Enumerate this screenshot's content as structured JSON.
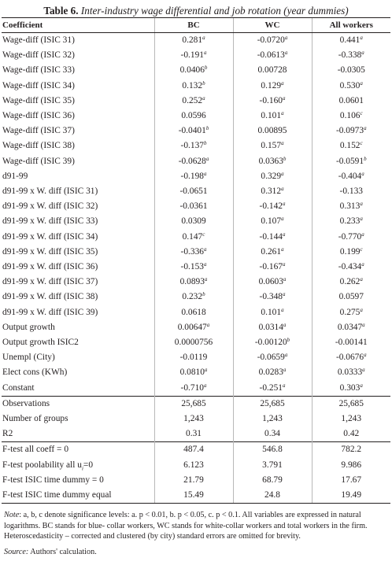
{
  "table": {
    "number_label": "Table 6.",
    "title": "Inter-industry wage differential and job rotation (year dummies)",
    "columns": [
      "Coefficient",
      "BC",
      "WC",
      "All workers"
    ],
    "coefficient_rows": [
      {
        "label": "Wage-diff (ISIC 31)",
        "bc": "0.281",
        "bc_sig": "a",
        "wc": "-0.0720",
        "wc_sig": "a",
        "all": "0.441",
        "all_sig": "a"
      },
      {
        "label": "Wage-diff (ISIC 32)",
        "bc": "-0.191",
        "bc_sig": "a",
        "wc": "-0.0613",
        "wc_sig": "a",
        "all": "-0.338",
        "all_sig": "a"
      },
      {
        "label": "Wage-diff (ISIC 33)",
        "bc": "0.0406",
        "bc_sig": "b",
        "wc": "0.00728",
        "wc_sig": "",
        "all": "-0.0305",
        "all_sig": ""
      },
      {
        "label": "Wage-diff (ISIC 34)",
        "bc": "0.132",
        "bc_sig": "b",
        "wc": "0.129",
        "wc_sig": "a",
        "all": "0.530",
        "all_sig": "a"
      },
      {
        "label": "Wage-diff (ISIC 35)",
        "bc": "0.252",
        "bc_sig": "a",
        "wc": "-0.160",
        "wc_sig": "a",
        "all": "0.0601",
        "all_sig": ""
      },
      {
        "label": "Wage-diff (ISIC 36)",
        "bc": "0.0596",
        "bc_sig": "",
        "wc": "0.101",
        "wc_sig": "a",
        "all": "0.106",
        "all_sig": "c"
      },
      {
        "label": "Wage-diff (ISIC 37)",
        "bc": "-0.0401",
        "bc_sig": "b",
        "wc": "0.00895",
        "wc_sig": "",
        "all": "-0.0973",
        "all_sig": "a"
      },
      {
        "label": "Wage-diff (ISIC 38)",
        "bc": "-0.137",
        "bc_sig": "b",
        "wc": "0.157",
        "wc_sig": "a",
        "all": "0.152",
        "all_sig": "c"
      },
      {
        "label": "Wage-diff (ISIC 39)",
        "bc": "-0.0628",
        "bc_sig": "a",
        "wc": "0.0363",
        "wc_sig": "b",
        "all": "-0.0591",
        "all_sig": "b"
      },
      {
        "label": "d91-99",
        "bc": "-0.198",
        "bc_sig": "a",
        "wc": "0.329",
        "wc_sig": "a",
        "all": "-0.404",
        "all_sig": "a"
      },
      {
        "label": "d91-99 x W. diff (ISIC 31)",
        "bc": "-0.0651",
        "bc_sig": "",
        "wc": "0.312",
        "wc_sig": "a",
        "all": "-0.133",
        "all_sig": ""
      },
      {
        "label": "d91-99 x W. diff (ISIC 32)",
        "bc": "-0.0361",
        "bc_sig": "",
        "wc": "-0.142",
        "wc_sig": "a",
        "all": "0.313",
        "all_sig": "a"
      },
      {
        "label": "d91-99 x W. diff (ISIC 33)",
        "bc": "0.0309",
        "bc_sig": "",
        "wc": "0.107",
        "wc_sig": "a",
        "all": "0.233",
        "all_sig": "a"
      },
      {
        "label": "d91-99 x W. diff (ISIC 34)",
        "bc": "0.147",
        "bc_sig": "c",
        "wc": "-0.144",
        "wc_sig": "a",
        "all": "-0.770",
        "all_sig": "a"
      },
      {
        "label": "d91-99 x W. diff (ISIC 35)",
        "bc": "-0.336",
        "bc_sig": "a",
        "wc": "0.261",
        "wc_sig": "a",
        "all": "0.199",
        "all_sig": "c"
      },
      {
        "label": "d91-99 x W. diff (ISIC 36)",
        "bc": "-0.153",
        "bc_sig": "a",
        "wc": "-0.167",
        "wc_sig": "a",
        "all": "-0.434",
        "all_sig": "a"
      },
      {
        "label": "d91-99 x W. diff (ISIC 37)",
        "bc": "0.0893",
        "bc_sig": "a",
        "wc": "0.0603",
        "wc_sig": "a",
        "all": "0.262",
        "all_sig": "a"
      },
      {
        "label": "d91-99 x W. diff (ISIC 38)",
        "bc": "0.232",
        "bc_sig": "b",
        "wc": "-0.348",
        "wc_sig": "a",
        "all": "0.0597",
        "all_sig": ""
      },
      {
        "label": "d91-99 x W. diff (ISIC 39)",
        "bc": "0.0618",
        "bc_sig": "",
        "wc": "0.101",
        "wc_sig": "a",
        "all": "0.275",
        "all_sig": "a"
      },
      {
        "label": "Output growth",
        "bc": "0.00647",
        "bc_sig": "a",
        "wc": "0.0314",
        "wc_sig": "a",
        "all": "0.0347",
        "all_sig": "a"
      },
      {
        "label": "Output growth ISIC2",
        "bc": "0.0000756",
        "bc_sig": "",
        "wc": "-0.00120",
        "wc_sig": "b",
        "all": "-0.00141",
        "all_sig": ""
      },
      {
        "label": "Unempl (City)",
        "bc": "-0.0119",
        "bc_sig": "",
        "wc": "-0.0659",
        "wc_sig": "a",
        "all": "-0.0676",
        "all_sig": "a"
      },
      {
        "label": "Elect cons (KWh)",
        "bc": "0.0810",
        "bc_sig": "a",
        "wc": "0.0283",
        "wc_sig": "a",
        "all": "0.0333",
        "all_sig": "a"
      },
      {
        "label": "Constant",
        "bc": "-0.710",
        "bc_sig": "a",
        "wc": "-0.251",
        "wc_sig": "a",
        "all": "0.303",
        "all_sig": "a"
      }
    ],
    "stat_rows": [
      {
        "label": "Observations",
        "bc": "25,685",
        "wc": "25,685",
        "all": "25,685"
      },
      {
        "label": "Number of groups",
        "bc": "1,243",
        "wc": "1,243",
        "all": "1,243"
      },
      {
        "label": "R2",
        "bc": "0.31",
        "wc": "0.34",
        "all": "0.42"
      },
      {
        "label": "F-test all coeff = 0",
        "bc": "487.4",
        "wc": "546.8",
        "all": "782.2"
      },
      {
        "label": "F-test poolability all u",
        "label_sub": "i",
        "label_after": "=0",
        "bc": "6.123",
        "wc": "3.791",
        "all": "9.986"
      },
      {
        "label": "F-test ISIC time dummy = 0",
        "bc": "21.79",
        "wc": "68.79",
        "all": "17.67"
      },
      {
        "label": "F-test ISIC time dummy equal",
        "bc": "15.49",
        "wc": "24.8",
        "all": "19.49"
      }
    ]
  },
  "note": {
    "label": "Note",
    "text": ": a, b, c denote significance levels: a. p < 0.01, b. p < 0.05, c. p < 0.1. All variables are expressed in natural logarithms. BC stands for blue- collar workers, WC stands for white-collar workers and total workers in the firm. Heteroscedasticity – corrected and clustered (by city) standard errors are omitted for brevity."
  },
  "source": {
    "label": "Source:",
    "text": " Authors' calculation."
  }
}
